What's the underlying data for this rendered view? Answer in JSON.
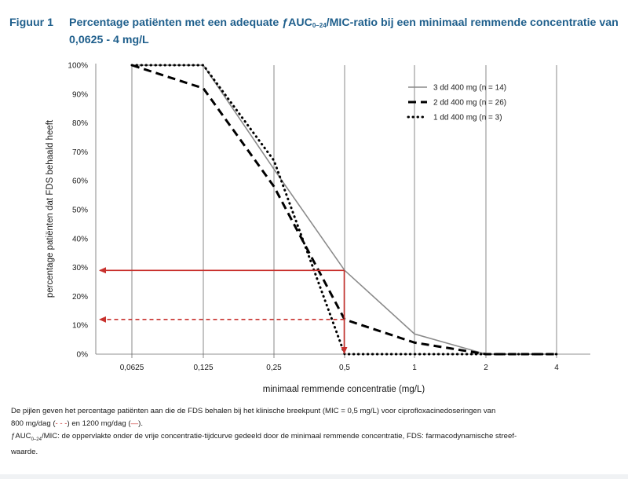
{
  "figure": {
    "label": "Figuur 1",
    "title_before_sub": "Percentage patiënten met een adequate ƒAUC",
    "title_sub": "0–24",
    "title_after_sub": "/MIC-ratio bij een minimaal remmende concentratie van 0,0625 - 4 mg/L"
  },
  "chart_data": {
    "type": "line",
    "x": [
      "0,0625",
      "0,125",
      "0,25",
      "0,5",
      "1",
      "2",
      "4"
    ],
    "x_values": [
      0.0625,
      0.125,
      0.25,
      0.5,
      1,
      2,
      4
    ],
    "xlabel": "minimaal remmende concentratie (mg/L)",
    "ylabel": "percentage patiënten dat FDS behaald heeft",
    "ylim": [
      0,
      100
    ],
    "y_ticks": [
      "0%",
      "10%",
      "20%",
      "30%",
      "40%",
      "50%",
      "60%",
      "70%",
      "80%",
      "90%",
      "100%"
    ],
    "x_scale": "log2",
    "grid": "vertical lines at each concentration",
    "legend_position": "top-right",
    "series": [
      {
        "name": "3 dd 400 mg (n = 14)",
        "style": "solid",
        "color": "#8a8a8a",
        "values": [
          100,
          100,
          64,
          29,
          7,
          0,
          0
        ]
      },
      {
        "name": "2 dd 400 mg (n = 26)",
        "style": "dashed",
        "color": "#000000",
        "values": [
          100,
          92,
          58,
          12,
          4,
          0,
          0
        ]
      },
      {
        "name": "1 dd 400 mg (n = 3)",
        "style": "dotted",
        "color": "#000000",
        "values": [
          100,
          100,
          67,
          0,
          0,
          0,
          0
        ]
      }
    ],
    "annotations": [
      {
        "style": "solid",
        "color": "#c8312d",
        "x": 0.5,
        "y": 29
      },
      {
        "style": "dashed",
        "color": "#c8312d",
        "x": 0.5,
        "y": 12
      }
    ]
  },
  "caption": {
    "line1": "De pijlen geven het percentage patiënten aan die de FDS behalen bij het klinische breekpunt (MIC = 0,5 mg/L) voor ciprofloxacinedoseringen van",
    "line2_a": "800 mg/dag (",
    "line2_dash": "- - -",
    "line2_b": ") en 1200 mg/dag (",
    "line2_solid": "—",
    "line2_c": ").",
    "line3_before_sub": "ƒAUC",
    "line3_sub": "0–24",
    "line3_after_sub": "/MIC: de oppervlakte onder de vrije concentratie-tijdcurve gedeeld door de minimaal remmende concentratie, FDS: farmacodynamische streef-",
    "line4": "waarde."
  }
}
